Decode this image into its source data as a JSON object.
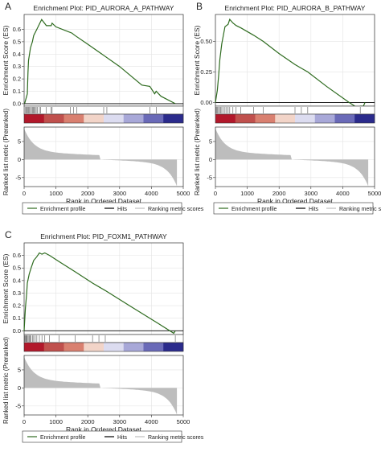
{
  "figure": {
    "rank_xlabel": "Rank in Ordered Dataset",
    "es_ylabel": "Enrichment Score (ES)",
    "metric_ylabel": "Ranked list metric (Preranked)",
    "legend": [
      {
        "key": "profile",
        "label": "Enrichment profile",
        "color": "#2e6b1f"
      },
      {
        "key": "hits",
        "label": "Hits",
        "color": "#000000"
      },
      {
        "key": "metric",
        "label": "Ranking metric scores",
        "color": "#bdbdbd"
      }
    ],
    "colors": {
      "profile": "#2e6b1f",
      "hits": "#555555",
      "metric_fill": "#bdbdbd",
      "heat": [
        "#b2182b",
        "#c0504d",
        "#d98070",
        "#f2d4c8",
        "#dcdcf0",
        "#a8a8d8",
        "#6a6ab8",
        "#2b2b8c"
      ]
    }
  },
  "chart_data": [
    {
      "panel_letter": "A",
      "type": "line",
      "title": "Enrichment Plot: PID_AURORA_A_PATHWAY",
      "xlim": [
        0,
        5000
      ],
      "x_ticks": [
        0,
        1000,
        2000,
        3000,
        4000,
        5000
      ],
      "es_ylim": [
        -0.02,
        0.72
      ],
      "es_ticks": [
        "0.0",
        "0.1",
        "0.2",
        "0.3",
        "0.4",
        "0.5",
        "0.6"
      ],
      "metric_ylim": [
        -7.5,
        9
      ],
      "metric_ticks": [
        "5",
        "0",
        "-5"
      ],
      "metric_tick_values": [
        5,
        0,
        -5
      ],
      "n_genes": 4800,
      "hits": [
        30,
        60,
        90,
        120,
        140,
        170,
        200,
        230,
        260,
        290,
        320,
        350,
        380,
        420,
        480,
        520,
        700,
        850,
        880,
        1450,
        1550,
        1650,
        2500,
        2600,
        3950,
        4150
      ],
      "es_start_x": 15,
      "es_end_x": 4750
    },
    {
      "panel_letter": "B",
      "type": "line",
      "title": "Enrichment Plot: PID_AURORA_B_PATHWAY",
      "xlim": [
        0,
        5000
      ],
      "x_ticks": [
        0,
        1000,
        2000,
        3000,
        4000,
        5000
      ],
      "es_ylim": [
        -0.03,
        0.72
      ],
      "es_ticks": [
        "0.00",
        "0.25",
        "0.50"
      ],
      "es_tick_values": [
        0,
        0.25,
        0.5
      ],
      "metric_ylim": [
        -7.5,
        9
      ],
      "metric_ticks": [
        "5",
        "0",
        "-5"
      ],
      "metric_tick_values": [
        5,
        0,
        -5
      ],
      "n_genes": 4800,
      "hits": [
        20,
        45,
        70,
        100,
        130,
        160,
        200,
        250,
        300,
        350,
        400,
        450,
        550,
        650,
        800,
        1200,
        1500,
        2500,
        2700,
        2900,
        4550
      ],
      "es_start_x": 0,
      "es_end_x": 4700
    },
    {
      "panel_letter": "C",
      "type": "line",
      "title": "Enrichment Plot: PID_FOXM1_PATHWAY",
      "xlim": [
        0,
        5000
      ],
      "x_ticks": [
        0,
        1000,
        2000,
        3000,
        4000,
        5000
      ],
      "es_ylim": [
        -0.03,
        0.7
      ],
      "es_ticks": [
        "0.0",
        "0.1",
        "0.2",
        "0.3",
        "0.4",
        "0.5",
        "0.6"
      ],
      "metric_ylim": [
        -7.5,
        9
      ],
      "metric_ticks": [
        "5",
        "0",
        "-5"
      ],
      "metric_tick_values": [
        5,
        0,
        -5
      ],
      "n_genes": 4800,
      "hits": [
        20,
        40,
        60,
        80,
        100,
        130,
        160,
        190,
        220,
        260,
        300,
        350,
        400,
        480,
        560,
        650,
        800,
        1100,
        1600,
        2150,
        2350,
        2550,
        4750
      ],
      "es_start_x": 0,
      "es_end_x": 4750
    }
  ],
  "es_profiles": [
    {
      "x": [
        15,
        100,
        120,
        140,
        200,
        260,
        300,
        400,
        550,
        700,
        850,
        880,
        1000,
        1400,
        1500,
        1600,
        2000,
        3000,
        3700,
        3950,
        4100,
        4150,
        4300,
        4750
      ],
      "y": [
        0.0,
        0.08,
        0.25,
        0.35,
        0.45,
        0.5,
        0.55,
        0.6,
        0.68,
        0.63,
        0.63,
        0.65,
        0.62,
        0.58,
        0.57,
        0.55,
        0.48,
        0.3,
        0.15,
        0.14,
        0.08,
        0.1,
        0.06,
        0.0
      ]
    },
    {
      "x": [
        0,
        60,
        100,
        140,
        200,
        250,
        300,
        400,
        450,
        550,
        650,
        800,
        1200,
        1500,
        2000,
        2500,
        2700,
        2900,
        3500,
        4200,
        4500,
        4550,
        4650,
        4700
      ],
      "y": [
        0.0,
        0.1,
        0.22,
        0.35,
        0.48,
        0.55,
        0.62,
        0.64,
        0.68,
        0.65,
        0.63,
        0.61,
        0.55,
        0.5,
        0.4,
        0.31,
        0.28,
        0.25,
        0.13,
        0.0,
        -0.05,
        -0.03,
        -0.03,
        0.0
      ]
    },
    {
      "x": [
        0,
        40,
        80,
        100,
        160,
        220,
        300,
        400,
        480,
        560,
        650,
        800,
        1100,
        1600,
        2150,
        2350,
        2550,
        3500,
        4200,
        4700,
        4750
      ],
      "y": [
        0.0,
        0.18,
        0.3,
        0.38,
        0.45,
        0.5,
        0.56,
        0.59,
        0.62,
        0.61,
        0.62,
        0.6,
        0.55,
        0.47,
        0.38,
        0.35,
        0.32,
        0.17,
        0.06,
        -0.02,
        0.0
      ]
    }
  ]
}
